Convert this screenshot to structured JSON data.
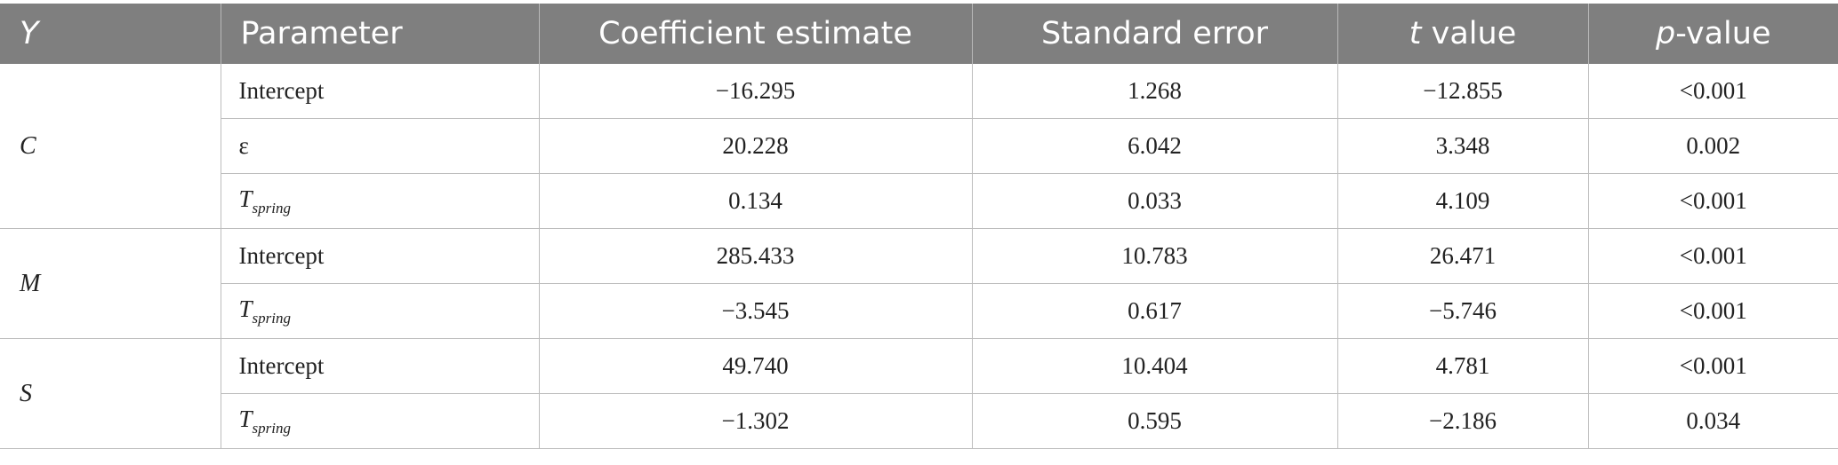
{
  "header": {
    "col_y": "Y",
    "col_parameter": "Parameter",
    "col_coef": "Coefficient estimate",
    "col_se": "Standard error",
    "col_t_italic": "t",
    "col_t_rest": " value",
    "col_p_italic": "p",
    "col_p_rest": "-value"
  },
  "groups": [
    {
      "y": "C",
      "rows": [
        {
          "parameter": "Intercept",
          "coef": "−16.295",
          "se": "1.268",
          "t": "−12.855",
          "p": "<0.001"
        },
        {
          "parameter": "ε",
          "coef": "20.228",
          "se": "6.042",
          "t": "3.348",
          "p": "0.002"
        },
        {
          "parameter_main": "T",
          "parameter_sub": "spring",
          "coef": "0.134",
          "se": "0.033",
          "t": "4.109",
          "p": "<0.001"
        }
      ]
    },
    {
      "y": "M",
      "rows": [
        {
          "parameter": "Intercept",
          "coef": "285.433",
          "se": "10.783",
          "t": "26.471",
          "p": "<0.001"
        },
        {
          "parameter_main": "T",
          "parameter_sub": "spring",
          "coef": "−3.545",
          "se": "0.617",
          "t": "−5.746",
          "p": "<0.001"
        }
      ]
    },
    {
      "y": "S",
      "rows": [
        {
          "parameter": "Intercept",
          "coef": "49.740",
          "se": "10.404",
          "t": "4.781",
          "p": "<0.001"
        },
        {
          "parameter_main": "T",
          "parameter_sub": "spring",
          "coef": "−1.302",
          "se": "0.595",
          "t": "−2.186",
          "p": "0.034"
        }
      ]
    }
  ]
}
